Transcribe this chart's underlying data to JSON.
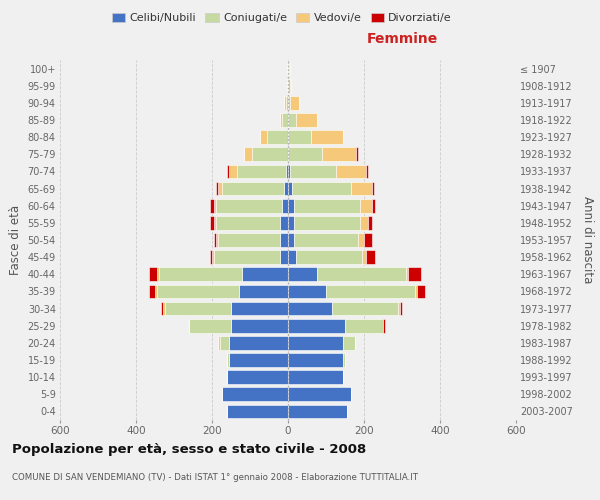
{
  "age_groups": [
    "0-4",
    "5-9",
    "10-14",
    "15-19",
    "20-24",
    "25-29",
    "30-34",
    "35-39",
    "40-44",
    "45-49",
    "50-54",
    "55-59",
    "60-64",
    "65-69",
    "70-74",
    "75-79",
    "80-84",
    "85-89",
    "90-94",
    "95-99",
    "100+"
  ],
  "birth_years": [
    "2003-2007",
    "1998-2002",
    "1993-1997",
    "1988-1992",
    "1983-1987",
    "1978-1982",
    "1973-1977",
    "1968-1972",
    "1963-1967",
    "1958-1962",
    "1953-1957",
    "1948-1952",
    "1943-1947",
    "1938-1942",
    "1933-1937",
    "1928-1932",
    "1923-1927",
    "1918-1922",
    "1913-1917",
    "1908-1912",
    "≤ 1907"
  ],
  "male": {
    "celibi": [
      160,
      175,
      160,
      155,
      155,
      150,
      150,
      130,
      120,
      20,
      20,
      20,
      15,
      10,
      5,
      0,
      0,
      0,
      0,
      0,
      0
    ],
    "coniugati": [
      0,
      0,
      0,
      5,
      25,
      110,
      175,
      215,
      220,
      175,
      165,
      170,
      175,
      165,
      130,
      95,
      55,
      15,
      5,
      3,
      2
    ],
    "vedovi": [
      0,
      0,
      0,
      0,
      5,
      0,
      5,
      5,
      5,
      5,
      5,
      5,
      5,
      10,
      20,
      20,
      20,
      5,
      5,
      0,
      0
    ],
    "divorziati": [
      0,
      0,
      0,
      0,
      0,
      0,
      5,
      15,
      20,
      5,
      5,
      10,
      10,
      5,
      5,
      0,
      0,
      0,
      0,
      0,
      0
    ]
  },
  "female": {
    "nubili": [
      155,
      165,
      145,
      145,
      145,
      150,
      115,
      100,
      75,
      20,
      15,
      15,
      15,
      10,
      5,
      0,
      0,
      0,
      0,
      0,
      0
    ],
    "coniugate": [
      0,
      0,
      0,
      5,
      30,
      100,
      175,
      235,
      235,
      175,
      170,
      175,
      175,
      155,
      120,
      90,
      60,
      20,
      5,
      4,
      2
    ],
    "vedove": [
      0,
      0,
      0,
      0,
      0,
      0,
      5,
      5,
      5,
      10,
      15,
      20,
      30,
      55,
      80,
      90,
      85,
      55,
      25,
      5,
      2
    ],
    "divorziate": [
      0,
      0,
      0,
      0,
      0,
      5,
      5,
      20,
      35,
      25,
      20,
      10,
      10,
      5,
      5,
      5,
      0,
      0,
      0,
      0,
      0
    ]
  },
  "colors": {
    "celibi": "#4472c4",
    "coniugati": "#c5d9a0",
    "vedovi": "#f5c87a",
    "divorziati": "#cc0000"
  },
  "title": "Popolazione per età, sesso e stato civile - 2008",
  "subtitle": "COMUNE DI SAN VENDEMIANO (TV) - Dati ISTAT 1° gennaio 2008 - Elaborazione TUTTITALIA.IT",
  "xlabel_right": "Femmine",
  "ylabel_left": "Fasce di età",
  "ylabel_right": "Anni di nascita",
  "xlim": 600,
  "legend_labels": [
    "Celibi/Nubili",
    "Coniugati/e",
    "Vedovi/e",
    "Divorziati/e"
  ],
  "bg_color": "#f0f0f0"
}
